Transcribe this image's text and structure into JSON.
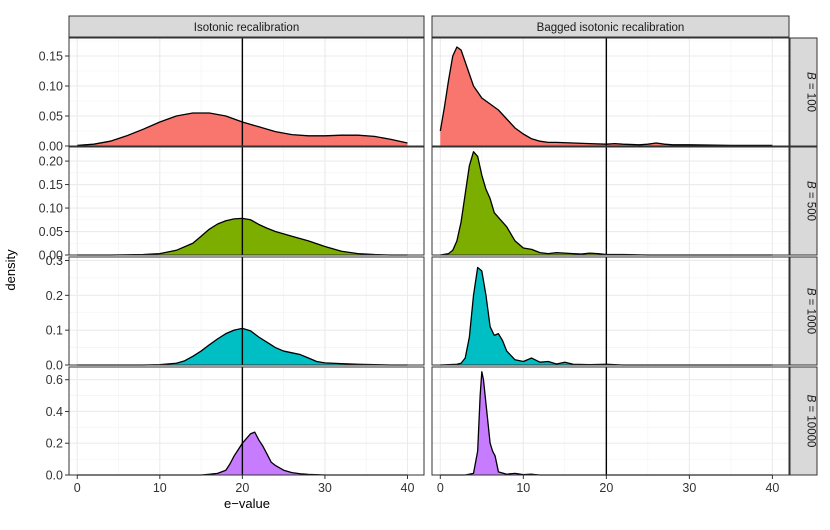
{
  "chart_data": {
    "type": "area",
    "subtype": "faceted density plot",
    "xlabel": "e−value",
    "ylabel": "density",
    "xlim": [
      -1,
      42
    ],
    "x_ticks": [
      0,
      10,
      20,
      30,
      40
    ],
    "x_tick_labels": [
      "0",
      "10",
      "20",
      "30",
      "40"
    ],
    "vline_x": 20,
    "grid": true,
    "legend": "none",
    "columns": [
      "Isotonic recalibration",
      "Bagged isotonic recalibration"
    ],
    "rows": [
      {
        "label": "B = 100",
        "B": "100",
        "color": "#F8766D",
        "ylim": [
          0,
          0.18
        ],
        "y_ticks": [
          0,
          0.05,
          0.1,
          0.15
        ],
        "y_tick_labels": [
          "0.00",
          "0.05",
          "0.10",
          "0.15"
        ],
        "series": [
          {
            "panel": "Isotonic recalibration",
            "x": [
              0,
              2,
              4,
              6,
              8,
              10,
              12,
              14,
              16,
              18,
              20,
              22,
              24,
              26,
              28,
              30,
              32,
              34,
              36,
              38,
              40
            ],
            "y": [
              0.001,
              0.003,
              0.008,
              0.017,
              0.028,
              0.04,
              0.05,
              0.055,
              0.055,
              0.05,
              0.04,
              0.032,
              0.024,
              0.019,
              0.017,
              0.017,
              0.018,
              0.018,
              0.016,
              0.011,
              0.005
            ]
          },
          {
            "panel": "Bagged isotonic recalibration",
            "x": [
              0,
              0.5,
              1,
              1.5,
              2,
              2.5,
              3,
              3.5,
              4,
              5,
              6,
              7,
              8,
              9,
              10,
              11,
              12,
              13,
              14,
              16,
              18,
              20,
              21,
              22,
              24,
              25,
              26,
              27,
              28,
              30,
              35,
              40
            ],
            "y": [
              0.025,
              0.065,
              0.11,
              0.15,
              0.165,
              0.16,
              0.14,
              0.12,
              0.1,
              0.08,
              0.07,
              0.06,
              0.045,
              0.03,
              0.02,
              0.012,
              0.008,
              0.006,
              0.006,
              0.005,
              0.004,
              0.003,
              0.004,
              0.003,
              0.002,
              0.003,
              0.005,
              0.003,
              0.002,
              0.002,
              0.001,
              0.001
            ]
          }
        ]
      },
      {
        "label": "B = 500",
        "B": "500",
        "color": "#7CAE00",
        "ylim": [
          0,
          0.23
        ],
        "y_ticks": [
          0,
          0.05,
          0.1,
          0.15,
          0.2
        ],
        "y_tick_labels": [
          "0.00",
          "0.05",
          "0.10",
          "0.15",
          "0.20"
        ],
        "series": [
          {
            "panel": "Isotonic recalibration",
            "x": [
              0,
              4,
              8,
              10,
              12,
              14,
              15,
              16,
              17,
              18,
              19,
              20,
              21,
              22,
              23,
              24,
              26,
              28,
              30,
              32,
              34,
              36,
              38,
              40
            ],
            "y": [
              0,
              0,
              0.001,
              0.003,
              0.01,
              0.025,
              0.04,
              0.055,
              0.066,
              0.073,
              0.077,
              0.078,
              0.075,
              0.065,
              0.057,
              0.05,
              0.04,
              0.03,
              0.018,
              0.008,
              0.003,
              0.001,
              0,
              0
            ]
          },
          {
            "panel": "Bagged isotonic recalibration",
            "x": [
              0,
              1,
              1.5,
              2,
              2.5,
              3,
              3.5,
              4,
              4.5,
              5,
              5.5,
              6,
              6.5,
              7,
              8,
              9,
              10,
              11,
              12,
              13,
              14,
              15,
              16,
              17,
              18,
              19,
              20,
              22,
              25,
              30,
              35,
              40
            ],
            "y": [
              0,
              0.003,
              0.01,
              0.03,
              0.07,
              0.13,
              0.19,
              0.22,
              0.21,
              0.17,
              0.14,
              0.12,
              0.09,
              0.08,
              0.06,
              0.03,
              0.015,
              0.012,
              0.005,
              0.003,
              0.005,
              0.004,
              0.003,
              0.002,
              0.004,
              0.003,
              0.001,
              0.001,
              0,
              0,
              0,
              0
            ]
          }
        ]
      },
      {
        "label": "B = 1000",
        "B": "1000",
        "color": "#00BFC4",
        "ylim": [
          0,
          0.31
        ],
        "y_ticks": [
          0,
          0.1,
          0.2,
          0.3
        ],
        "y_tick_labels": [
          "0.0",
          "0.1",
          "0.2",
          "0.3"
        ],
        "series": [
          {
            "panel": "Isotonic recalibration",
            "x": [
              0,
              8,
              10,
              12,
              13,
              14,
              15,
              16,
              17,
              18,
              19,
              20,
              21,
              22,
              23,
              24,
              25,
              26,
              27,
              28,
              29,
              30,
              32,
              34,
              36,
              38,
              40
            ],
            "y": [
              0,
              0,
              0.001,
              0.005,
              0.012,
              0.025,
              0.04,
              0.058,
              0.075,
              0.09,
              0.1,
              0.105,
              0.098,
              0.08,
              0.065,
              0.05,
              0.04,
              0.035,
              0.03,
              0.02,
              0.01,
              0.006,
              0.004,
              0.002,
              0.001,
              0,
              0
            ]
          },
          {
            "panel": "Bagged isotonic recalibration",
            "x": [
              0,
              2,
              2.5,
              3,
              3.5,
              4,
              4.5,
              5,
              5.5,
              6,
              6.5,
              7,
              7.5,
              8,
              9,
              10,
              11,
              12,
              13,
              14,
              15,
              16,
              18,
              20,
              22,
              25,
              30,
              40
            ],
            "y": [
              0,
              0.002,
              0.005,
              0.02,
              0.08,
              0.2,
              0.28,
              0.27,
              0.2,
              0.11,
              0.085,
              0.09,
              0.07,
              0.04,
              0.015,
              0.01,
              0.02,
              0.008,
              0.01,
              0.003,
              0.008,
              0.002,
              0.001,
              0.002,
              0,
              0,
              0,
              0
            ]
          }
        ]
      },
      {
        "label": "B = 10000",
        "B": "10000",
        "color": "#C77CFF",
        "ylim": [
          0,
          0.68
        ],
        "y_ticks": [
          0,
          0.2,
          0.4,
          0.6
        ],
        "y_tick_labels": [
          "0.0",
          "0.2",
          "0.4",
          "0.6"
        ],
        "series": [
          {
            "panel": "Isotonic recalibration",
            "x": [
              0,
              15,
              16,
              17,
              18,
              18.5,
              19,
              19.5,
              20,
              20.5,
              21,
              21.5,
              22,
              22.5,
              23,
              23.5,
              24,
              25,
              26,
              27,
              28,
              30,
              40
            ],
            "y": [
              0,
              0,
              0.005,
              0.01,
              0.03,
              0.07,
              0.12,
              0.16,
              0.2,
              0.23,
              0.26,
              0.27,
              0.22,
              0.18,
              0.13,
              0.08,
              0.06,
              0.03,
              0.015,
              0.008,
              0.004,
              0,
              0
            ]
          },
          {
            "panel": "Bagged isotonic recalibration",
            "x": [
              0,
              3,
              4,
              4.5,
              4.8,
              5,
              5.2,
              5.5,
              5.8,
              6,
              6.3,
              6.6,
              7,
              8,
              9,
              10,
              11,
              12,
              15,
              20,
              40
            ],
            "y": [
              0,
              0,
              0.01,
              0.15,
              0.5,
              0.65,
              0.6,
              0.45,
              0.3,
              0.2,
              0.15,
              0.12,
              0.02,
              0.005,
              0.01,
              0.002,
              0.005,
              0,
              0,
              0,
              0
            ]
          }
        ]
      }
    ]
  }
}
